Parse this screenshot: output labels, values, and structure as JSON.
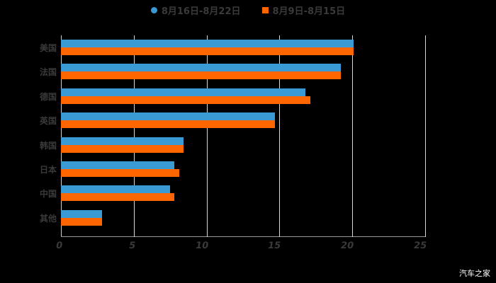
{
  "chart_data": {
    "type": "bar",
    "orientation": "horizontal",
    "title": "",
    "xlabel": "",
    "ylabel": "",
    "xlim": [
      0,
      25
    ],
    "x_ticks": [
      "0",
      "5",
      "10",
      "15",
      "20",
      "25"
    ],
    "grid": true,
    "legend_position": "top",
    "categories": [
      "美国",
      "法国",
      "德国",
      "英国",
      "韩国",
      "日本",
      "中国",
      "其他"
    ],
    "series": [
      {
        "name": "8月16日-8月22日",
        "color": "#3a9ad4",
        "values": [
          20.1,
          19.2,
          16.8,
          14.7,
          8.4,
          7.8,
          7.5,
          2.8
        ]
      },
      {
        "name": "8月9日-8月15日",
        "color": "#ff6600",
        "values": [
          20.1,
          19.2,
          17.1,
          14.7,
          8.4,
          8.1,
          7.8,
          2.8
        ]
      }
    ]
  },
  "legend": {
    "items": [
      {
        "label": "8月16日-8月22日",
        "color": "#3a9ad4",
        "marker": "circle"
      },
      {
        "label": "8月9日-8月15日",
        "color": "#ff6600",
        "marker": "square"
      }
    ]
  },
  "watermark": "汽车之家"
}
